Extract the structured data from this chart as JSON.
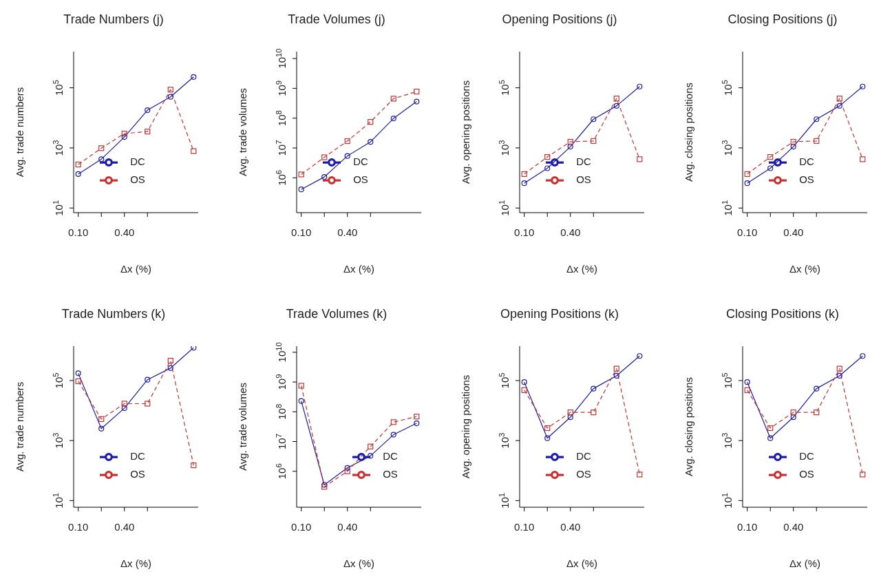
{
  "chart_data": [
    {
      "type": "line",
      "title": "Trade Numbers (j)",
      "xlabel": "Δx (%)",
      "ylabel": "Avg. trade numbers",
      "log": true,
      "legend": "bottom left",
      "x": [
        0.1,
        0.25,
        0.4,
        0.55,
        0.7,
        0.85
      ],
      "xlim": [
        0.07,
        0.88
      ],
      "xticks": [
        {
          "value": 0.1,
          "label": "0.10"
        },
        {
          "value": 0.25,
          "label": null
        },
        {
          "value": 0.4,
          "label": "0.40"
        },
        {
          "value": 0.55,
          "label": null
        }
      ],
      "ylim": [
        7,
        1600000
      ],
      "yticks": [
        {
          "value": 10,
          "label": "10$^{1}$"
        },
        {
          "value": 1000,
          "label": "10$^{3}$"
        },
        {
          "value": 100000,
          "label": "10$^{5}$"
        }
      ],
      "series": [
        {
          "name": "DC",
          "color": "#1c1ca8",
          "marker": "circle",
          "line_style": "solid",
          "values": [
            135,
            420,
            2300,
            18000,
            50000,
            230000
          ]
        },
        {
          "name": "OS",
          "color": "#c83232",
          "marker": "square",
          "line_style": "dashed",
          "values": [
            280,
            980,
            3000,
            3500,
            87000,
            780
          ]
        }
      ]
    },
    {
      "type": "line",
      "title": "Trade Volumes (j)",
      "xlabel": "Δx (%)",
      "ylabel": "Avg. trade volumes",
      "log": true,
      "legend": "bottom left",
      "x": [
        0.1,
        0.25,
        0.4,
        0.55,
        0.7,
        0.85
      ],
      "xlim": [
        0.07,
        0.88
      ],
      "xticks": [
        {
          "value": 0.1,
          "label": "0.10"
        },
        {
          "value": 0.25,
          "label": null
        },
        {
          "value": 0.4,
          "label": "0.40"
        },
        {
          "value": 0.55,
          "label": null
        }
      ],
      "ylim": [
        68000,
        17000000000
      ],
      "yticks": [
        {
          "value": 1000000,
          "label": "10$^{6}$"
        },
        {
          "value": 10000000,
          "label": "10$^{7}$"
        },
        {
          "value": 100000000,
          "label": "10$^{8}$"
        },
        {
          "value": 1000000000,
          "label": "10$^{9}$"
        },
        {
          "value": 10000000000,
          "label": "10$^{10}$"
        }
      ],
      "series": [
        {
          "name": "DC",
          "color": "#1c1ca8",
          "marker": "circle",
          "line_style": "solid",
          "values": [
            410000,
            1070000,
            5400000,
            16000000,
            98000000,
            360000000
          ]
        },
        {
          "name": "OS",
          "color": "#c83232",
          "marker": "square",
          "line_style": "dashed",
          "values": [
            1300000,
            4900000,
            17000000,
            75000000,
            450000000,
            780000000
          ]
        }
      ]
    },
    {
      "type": "line",
      "title": "Opening Positions (j)",
      "xlabel": "Δx (%)",
      "ylabel": "Avg. opening positions",
      "log": true,
      "legend": "bottom left",
      "x": [
        0.1,
        0.25,
        0.4,
        0.55,
        0.7,
        0.85
      ],
      "xlim": [
        0.07,
        0.88
      ],
      "xticks": [
        {
          "value": 0.1,
          "label": "0.10"
        },
        {
          "value": 0.25,
          "label": null
        },
        {
          "value": 0.4,
          "label": "0.40"
        },
        {
          "value": 0.55,
          "label": null
        }
      ],
      "ylim": [
        7,
        1600000
      ],
      "yticks": [
        {
          "value": 10,
          "label": "10$^{1}$"
        },
        {
          "value": 1000,
          "label": "10$^{3}$"
        },
        {
          "value": 100000,
          "label": "10$^{5}$"
        }
      ],
      "series": [
        {
          "name": "DC",
          "color": "#1c1ca8",
          "marker": "circle",
          "line_style": "solid",
          "values": [
            67,
            210,
            1100,
            9000,
            25000,
            110000
          ]
        },
        {
          "name": "OS",
          "color": "#c83232",
          "marker": "square",
          "line_style": "dashed",
          "values": [
            135,
            500,
            1600,
            1700,
            44000,
            420
          ]
        }
      ]
    },
    {
      "type": "line",
      "title": "Closing Positions (j)",
      "xlabel": "Δx (%)",
      "ylabel": "Avg. closing positions",
      "log": true,
      "legend": "bottom left",
      "x": [
        0.1,
        0.25,
        0.4,
        0.55,
        0.7,
        0.85
      ],
      "xlim": [
        0.07,
        0.88
      ],
      "xticks": [
        {
          "value": 0.1,
          "label": "0.10"
        },
        {
          "value": 0.25,
          "label": null
        },
        {
          "value": 0.4,
          "label": "0.40"
        },
        {
          "value": 0.55,
          "label": null
        }
      ],
      "ylim": [
        7,
        1600000
      ],
      "yticks": [
        {
          "value": 10,
          "label": "10$^{1}$"
        },
        {
          "value": 1000,
          "label": "10$^{3}$"
        },
        {
          "value": 100000,
          "label": "10$^{5}$"
        }
      ],
      "series": [
        {
          "name": "DC",
          "color": "#1c1ca8",
          "marker": "circle",
          "line_style": "solid",
          "values": [
            67,
            210,
            1100,
            9000,
            25000,
            110000
          ]
        },
        {
          "name": "OS",
          "color": "#c83232",
          "marker": "square",
          "line_style": "dashed",
          "values": [
            135,
            500,
            1600,
            1700,
            44000,
            420
          ]
        }
      ]
    },
    {
      "type": "line",
      "title": "Trade Numbers (k)",
      "xlabel": "Δx (%)",
      "ylabel": "Avg. trade numbers",
      "log": true,
      "legend": "bottom left",
      "x": [
        0.1,
        0.25,
        0.4,
        0.55,
        0.7,
        0.85
      ],
      "xlim": [
        0.07,
        0.88
      ],
      "xticks": [
        {
          "value": 0.1,
          "label": "0.10"
        },
        {
          "value": 0.25,
          "label": null
        },
        {
          "value": 0.4,
          "label": "0.40"
        },
        {
          "value": 0.55,
          "label": null
        }
      ],
      "ylim": [
        6,
        1400000
      ],
      "yticks": [
        {
          "value": 10,
          "label": "10$^{1}$"
        },
        {
          "value": 1000,
          "label": "10$^{3}$"
        },
        {
          "value": 100000,
          "label": "10$^{5}$"
        }
      ],
      "series": [
        {
          "name": "DC",
          "color": "#1c1ca8",
          "marker": "circle",
          "line_style": "solid",
          "values": [
            175000,
            2500,
            12000,
            107000,
            260000,
            1250000
          ]
        },
        {
          "name": "OS",
          "color": "#c83232",
          "marker": "square",
          "line_style": "dashed",
          "values": [
            95000,
            5200,
            17000,
            17000,
            460000,
            150
          ]
        }
      ]
    },
    {
      "type": "line",
      "title": "Trade Volumes (k)",
      "xlabel": "Δx (%)",
      "ylabel": "Avg. trade volumes",
      "log": true,
      "legend": "bottom right",
      "x": [
        0.1,
        0.25,
        0.4,
        0.55,
        0.7,
        0.85
      ],
      "xlim": [
        0.07,
        0.88
      ],
      "xticks": [
        {
          "value": 0.1,
          "label": "0.10"
        },
        {
          "value": 0.25,
          "label": null
        },
        {
          "value": 0.4,
          "label": "0.40"
        },
        {
          "value": 0.55,
          "label": null
        }
      ],
      "ylim": [
        62000,
        16000000000
      ],
      "yticks": [
        {
          "value": 1000000,
          "label": "10$^{6}$"
        },
        {
          "value": 10000000,
          "label": "10$^{7}$"
        },
        {
          "value": 100000000,
          "label": "10$^{8}$"
        },
        {
          "value": 1000000000,
          "label": "10$^{9}$"
        },
        {
          "value": 10000000000,
          "label": "10$^{10}$"
        }
      ],
      "series": [
        {
          "name": "DC",
          "color": "#1c1ca8",
          "marker": "circle",
          "line_style": "solid",
          "values": [
            230000000,
            350000,
            1300000,
            3300000,
            17000000,
            41000000
          ]
        },
        {
          "name": "OS",
          "color": "#c83232",
          "marker": "square",
          "line_style": "dashed",
          "values": [
            750000000,
            300000,
            1000000,
            6800000,
            45000000,
            69000000
          ]
        }
      ]
    },
    {
      "type": "line",
      "title": "Opening Positions (k)",
      "xlabel": "Δx (%)",
      "ylabel": "Avg. opening positions",
      "log": true,
      "legend": "bottom left",
      "x": [
        0.1,
        0.25,
        0.4,
        0.55,
        0.7,
        0.85
      ],
      "xlim": [
        0.07,
        0.88
      ],
      "xticks": [
        {
          "value": 0.1,
          "label": "0.10"
        },
        {
          "value": 0.25,
          "label": null
        },
        {
          "value": 0.4,
          "label": "0.40"
        },
        {
          "value": 0.55,
          "label": null
        }
      ],
      "ylim": [
        6,
        1400000
      ],
      "yticks": [
        {
          "value": 10,
          "label": "10$^{1}$"
        },
        {
          "value": 1000,
          "label": "10$^{3}$"
        },
        {
          "value": 100000,
          "label": "10$^{5}$"
        }
      ],
      "series": [
        {
          "name": "DC",
          "color": "#1c1ca8",
          "marker": "circle",
          "line_style": "solid",
          "values": [
            89000,
            1200,
            6000,
            54000,
            145000,
            660000
          ]
        },
        {
          "name": "OS",
          "color": "#c83232",
          "marker": "square",
          "line_style": "dashed",
          "values": [
            48000,
            2600,
            8700,
            8700,
            250000,
            74
          ]
        }
      ]
    },
    {
      "type": "line",
      "title": "Closing Positions (k)",
      "xlabel": "Δx (%)",
      "ylabel": "Avg. closing positions",
      "log": true,
      "legend": "bottom left",
      "x": [
        0.1,
        0.25,
        0.4,
        0.55,
        0.7,
        0.85
      ],
      "xlim": [
        0.07,
        0.88
      ],
      "xticks": [
        {
          "value": 0.1,
          "label": "0.10"
        },
        {
          "value": 0.25,
          "label": null
        },
        {
          "value": 0.4,
          "label": "0.40"
        },
        {
          "value": 0.55,
          "label": null
        }
      ],
      "ylim": [
        6,
        1400000
      ],
      "yticks": [
        {
          "value": 10,
          "label": "10$^{1}$"
        },
        {
          "value": 1000,
          "label": "10$^{3}$"
        },
        {
          "value": 100000,
          "label": "10$^{5}$"
        }
      ],
      "series": [
        {
          "name": "DC",
          "color": "#1c1ca8",
          "marker": "circle",
          "line_style": "solid",
          "values": [
            89000,
            1200,
            6000,
            54000,
            145000,
            660000
          ]
        },
        {
          "name": "OS",
          "color": "#c83232",
          "marker": "square",
          "line_style": "dashed",
          "values": [
            48000,
            2600,
            8700,
            8700,
            250000,
            74
          ]
        }
      ]
    }
  ]
}
